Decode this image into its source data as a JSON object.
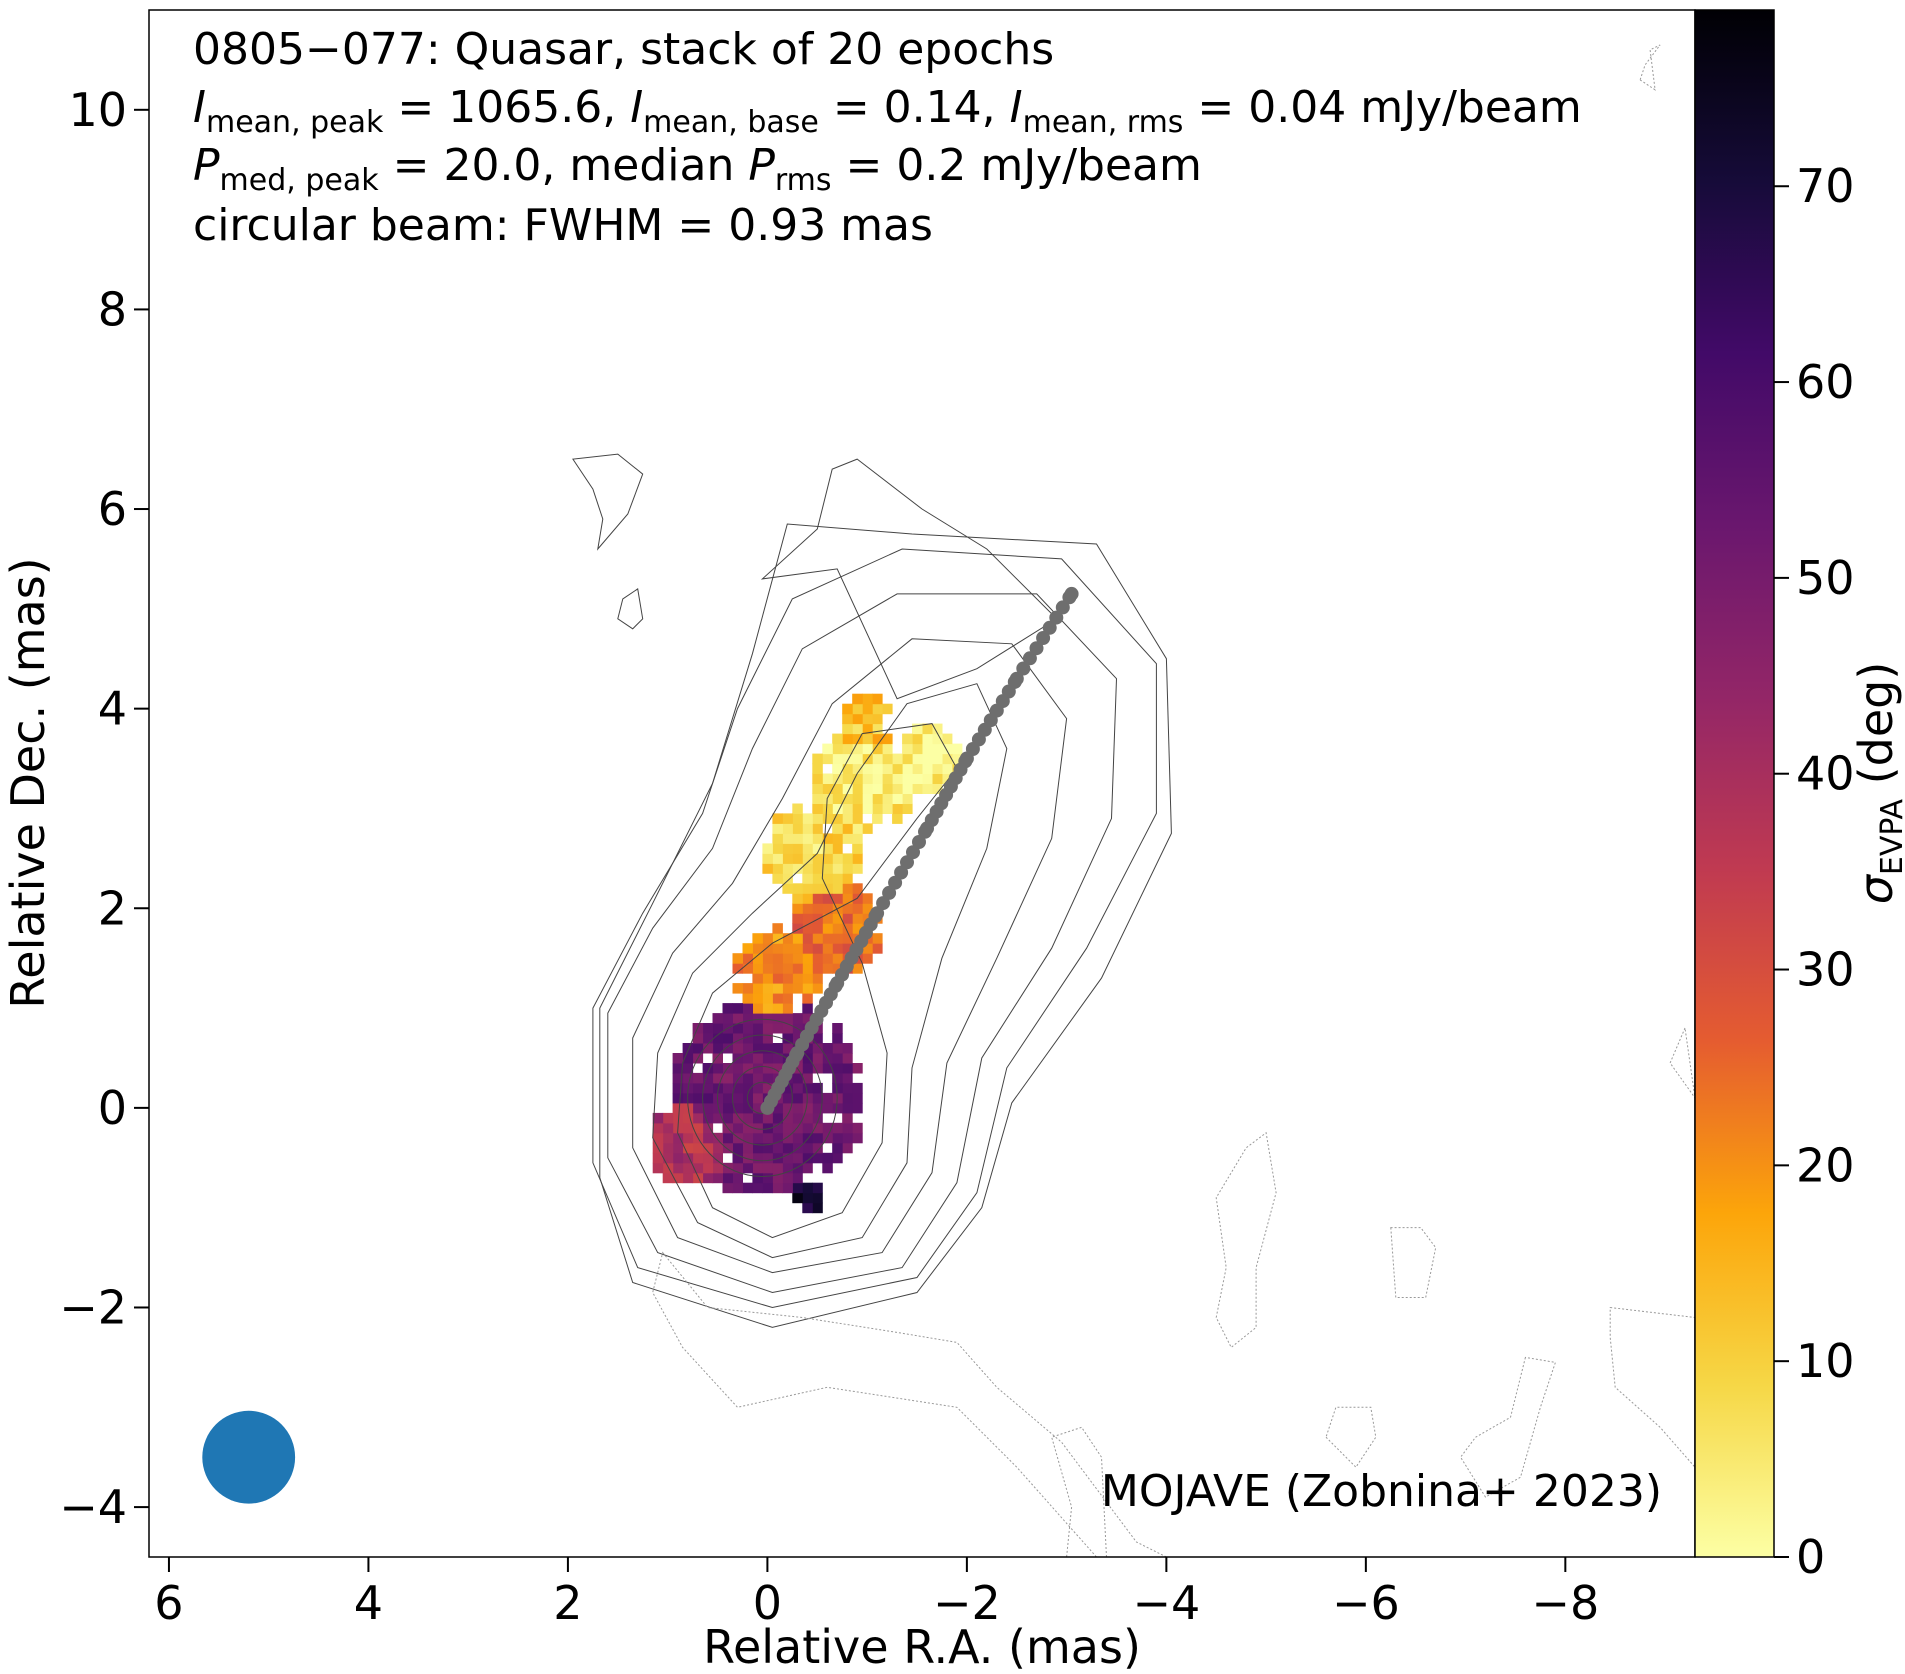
{
  "chart_data": {
    "type": "heatmap",
    "annotation": {
      "line1": "0805−077: Quasar, stack of 20 epochs",
      "line2": {
        "sym": "I",
        "sub1": "mean, peak",
        "val1": " = 1065.6, ",
        "sub2": "mean, base",
        "val2": " = 0.14, ",
        "sub3": "mean, rms",
        "val3": " = 0.04 mJy/beam"
      },
      "line3": {
        "sym": "P",
        "sub1": "med, peak",
        "val1": " = 20.0, median ",
        "sub2": "rms",
        "val2": " = 0.2 mJy/beam"
      },
      "line4": "circular beam: FWHM = 0.93 mas"
    },
    "credit": "MOJAVE (Zobnina+ 2023)",
    "xlabel": "Relative R.A. (mas)",
    "ylabel": "Relative Dec. (mas)",
    "xlim": [
      6.2,
      -9.3
    ],
    "ylim": [
      -4.5,
      11
    ],
    "x_ticks": [
      6,
      4,
      2,
      0,
      -2,
      -4,
      -6,
      -8
    ],
    "x_tick_labels": [
      "6",
      "4",
      "2",
      "0",
      "−2",
      "−4",
      "−6",
      "−8"
    ],
    "y_ticks": [
      -4,
      -2,
      0,
      2,
      4,
      6,
      8,
      10
    ],
    "y_tick_labels": [
      "−4",
      "−2",
      "0",
      "2",
      "4",
      "6",
      "8",
      "10"
    ],
    "colorbar": {
      "label_sym": "σ",
      "label_sub": "EVPA",
      "label_rest": " (deg)",
      "range": [
        0,
        79
      ],
      "ticks": [
        0,
        10,
        20,
        30,
        40,
        50,
        60,
        70
      ],
      "tick_labels": [
        "0",
        "10",
        "20",
        "30",
        "40",
        "50",
        "60",
        "70"
      ],
      "colormap": "inferno_r",
      "colors": [
        "#fcffa4",
        "#f6d746",
        "#fca50a",
        "#e55c30",
        "#c03a51",
        "#932667",
        "#6a176e",
        "#420a68",
        "#160b39",
        "#000004"
      ]
    },
    "beam": {
      "fwhm_mas": 0.93,
      "center_mas": [
        5.2,
        -3.5
      ],
      "color": "#1f77b4"
    },
    "ridge_line": {
      "color": "#6e6e6e",
      "points": [
        [
          0,
          0
        ],
        [
          -0.3,
          0.55
        ],
        [
          -0.7,
          1.25
        ],
        [
          -1.1,
          1.95
        ],
        [
          -1.6,
          2.8
        ],
        [
          -2.0,
          3.5
        ],
        [
          -2.5,
          4.3
        ],
        [
          -3.05,
          5.15
        ]
      ]
    },
    "contours_mas": [
      [
        [
          0.9,
          -0.25
        ],
        [
          0.85,
          0.45
        ],
        [
          0.55,
          1.15
        ],
        [
          -0.05,
          1.65
        ],
        [
          -0.9,
          2.1
        ],
        [
          -1.5,
          2.9
        ],
        [
          -1.9,
          3.4
        ],
        [
          -1.65,
          3.85
        ],
        [
          -0.95,
          3.75
        ],
        [
          -0.6,
          3.1
        ],
        [
          -0.55,
          2.3
        ],
        [
          -0.95,
          1.45
        ],
        [
          -1.2,
          0.55
        ],
        [
          -1.15,
          -0.35
        ],
        [
          -0.75,
          -1.05
        ],
        [
          -0.05,
          -1.3
        ],
        [
          0.55,
          -1.0
        ]
      ],
      [
        [
          1.15,
          -0.3
        ],
        [
          1.1,
          0.55
        ],
        [
          0.75,
          1.35
        ],
        [
          0.15,
          1.95
        ],
        [
          -0.5,
          2.55
        ],
        [
          -0.9,
          3.35
        ],
        [
          -1.4,
          4.05
        ],
        [
          -2.1,
          4.25
        ],
        [
          -2.4,
          3.6
        ],
        [
          -2.2,
          2.6
        ],
        [
          -1.75,
          1.5
        ],
        [
          -1.45,
          0.4
        ],
        [
          -1.4,
          -0.55
        ],
        [
          -0.95,
          -1.3
        ],
        [
          -0.05,
          -1.5
        ],
        [
          0.7,
          -1.15
        ]
      ],
      [
        [
          1.35,
          -0.4
        ],
        [
          1.35,
          0.7
        ],
        [
          0.95,
          1.55
        ],
        [
          0.35,
          2.25
        ],
        [
          -0.15,
          3.1
        ],
        [
          -0.65,
          4.05
        ],
        [
          -1.45,
          4.7
        ],
        [
          -2.45,
          4.65
        ],
        [
          -3.0,
          3.9
        ],
        [
          -2.85,
          2.7
        ],
        [
          -2.3,
          1.5
        ],
        [
          -1.8,
          0.45
        ],
        [
          -1.65,
          -0.65
        ],
        [
          -1.15,
          -1.45
        ],
        [
          -0.05,
          -1.65
        ],
        [
          0.9,
          -1.3
        ]
      ],
      [
        [
          1.6,
          -0.5
        ],
        [
          1.6,
          0.95
        ],
        [
          1.15,
          1.8
        ],
        [
          0.55,
          2.6
        ],
        [
          0.15,
          3.6
        ],
        [
          -0.35,
          4.6
        ],
        [
          -1.3,
          5.15
        ],
        [
          -2.7,
          5.15
        ],
        [
          -3.5,
          4.3
        ],
        [
          -3.45,
          2.9
        ],
        [
          -2.85,
          1.6
        ],
        [
          -2.15,
          0.5
        ],
        [
          -1.9,
          -0.75
        ],
        [
          -1.35,
          -1.6
        ],
        [
          -0.05,
          -1.85
        ],
        [
          1.1,
          -1.45
        ]
      ],
      [
        [
          1.75,
          -0.55
        ],
        [
          1.75,
          1.0
        ],
        [
          1.25,
          1.95
        ],
        [
          0.65,
          2.95
        ],
        [
          0.3,
          4.0
        ],
        [
          -0.25,
          5.1
        ],
        [
          -1.35,
          5.6
        ],
        [
          -2.95,
          5.5
        ],
        [
          -3.9,
          4.45
        ],
        [
          -3.9,
          2.95
        ],
        [
          -3.2,
          1.6
        ],
        [
          -2.4,
          0.4
        ],
        [
          -2.1,
          -0.85
        ],
        [
          -1.5,
          -1.7
        ],
        [
          -0.05,
          -2.0
        ],
        [
          1.3,
          -1.6
        ]
      ],
      [
        [
          1.68,
          -0.7
        ],
        [
          1.68,
          1.0
        ],
        [
          1.15,
          2.05
        ],
        [
          0.55,
          3.25
        ],
        [
          0.15,
          4.55
        ],
        [
          -0.2,
          5.85
        ],
        [
          -1.45,
          5.75
        ],
        [
          -3.3,
          5.65
        ],
        [
          -4.0,
          4.5
        ],
        [
          -4.05,
          2.75
        ],
        [
          -3.35,
          1.3
        ],
        [
          -2.45,
          0.05
        ],
        [
          -2.15,
          -1.0
        ],
        [
          -1.5,
          -1.85
        ],
        [
          -0.05,
          -2.2
        ],
        [
          1.35,
          -1.75
        ]
      ],
      [
        [
          -0.9,
          6.5
        ],
        [
          -1.55,
          6.0
        ],
        [
          -2.2,
          5.6
        ],
        [
          -2.9,
          4.9
        ],
        [
          -2.1,
          4.4
        ],
        [
          -1.3,
          4.1
        ],
        [
          -0.7,
          5.4
        ],
        [
          0.05,
          5.3
        ],
        [
          -0.5,
          5.8
        ],
        [
          -0.65,
          6.4
        ]
      ],
      [
        [
          1.95,
          6.5
        ],
        [
          1.75,
          6.2
        ],
        [
          1.65,
          5.9
        ],
        [
          1.7,
          5.6
        ],
        [
          1.4,
          5.95
        ],
        [
          1.25,
          6.35
        ],
        [
          1.5,
          6.55
        ]
      ],
      [
        [
          1.45,
          5.1
        ],
        [
          1.3,
          5.2
        ],
        [
          1.25,
          4.9
        ],
        [
          1.35,
          4.8
        ],
        [
          1.5,
          4.9
        ]
      ]
    ],
    "dashed_contours_mas": [
      [
        [
          1.05,
          -1.45
        ],
        [
          0.6,
          -2.0
        ],
        [
          -0.35,
          -2.1
        ],
        [
          -1.3,
          -2.25
        ],
        [
          -1.9,
          -2.35
        ],
        [
          -2.3,
          -2.8
        ],
        [
          -2.95,
          -3.35
        ],
        [
          -3.7,
          -4.35
        ],
        [
          -4.0,
          -4.5
        ],
        [
          -3.3,
          -4.5
        ],
        [
          -2.5,
          -3.6
        ],
        [
          -1.9,
          -3.0
        ],
        [
          -0.6,
          -2.8
        ],
        [
          0.3,
          -3.0
        ],
        [
          0.85,
          -2.4
        ],
        [
          1.15,
          -1.85
        ]
      ],
      [
        [
          -4.5,
          -2.1
        ],
        [
          -4.6,
          -1.6
        ],
        [
          -4.5,
          -0.9
        ],
        [
          -4.8,
          -0.4
        ],
        [
          -5.0,
          -0.25
        ],
        [
          -5.1,
          -0.85
        ],
        [
          -4.9,
          -1.6
        ],
        [
          -4.9,
          -2.2
        ],
        [
          -4.65,
          -2.4
        ]
      ],
      [
        [
          -6.25,
          -1.2
        ],
        [
          -6.3,
          -1.9
        ],
        [
          -6.6,
          -1.9
        ],
        [
          -6.7,
          -1.4
        ],
        [
          -6.55,
          -1.2
        ]
      ],
      [
        [
          -8.45,
          -2.0
        ],
        [
          -9.3,
          -2.1
        ],
        [
          -9.3,
          -3.6
        ],
        [
          -8.95,
          -3.2
        ],
        [
          -8.5,
          -2.8
        ],
        [
          -8.45,
          -2.3
        ]
      ],
      [
        [
          -5.6,
          -3.3
        ],
        [
          -5.9,
          -3.6
        ],
        [
          -6.1,
          -3.3
        ],
        [
          -6.05,
          -3.0
        ],
        [
          -5.7,
          -3.0
        ]
      ],
      [
        [
          -7.6,
          -2.5
        ],
        [
          -7.45,
          -3.1
        ],
        [
          -7.1,
          -3.3
        ],
        [
          -6.95,
          -3.5
        ],
        [
          -7.2,
          -3.9
        ],
        [
          -7.55,
          -3.7
        ],
        [
          -7.75,
          -3.0
        ],
        [
          -7.9,
          -2.55
        ]
      ],
      [
        [
          -3.4,
          -4.5
        ],
        [
          -3.35,
          -3.5
        ],
        [
          -3.15,
          -3.2
        ],
        [
          -2.85,
          -3.3
        ],
        [
          -3.05,
          -4.0
        ],
        [
          -3.0,
          -4.5
        ]
      ],
      [
        [
          -9.2,
          0.8
        ],
        [
          -9.05,
          0.45
        ],
        [
          -9.3,
          0.1
        ]
      ],
      [
        [
          -8.75,
          10.3
        ],
        [
          -8.9,
          10.2
        ],
        [
          -8.85,
          10.6
        ],
        [
          -8.95,
          10.65
        ],
        [
          -8.8,
          10.45
        ]
      ]
    ],
    "sigma_blobs_deg": [
      {
        "center": [
          0.0,
          0.1
        ],
        "radius": 1.0,
        "value": 52
      },
      {
        "center": [
          0.75,
          -0.35
        ],
        "radius": 0.45,
        "value": 38
      },
      {
        "center": [
          -0.1,
          1.35
        ],
        "radius": 0.45,
        "value": 20
      },
      {
        "center": [
          -0.7,
          1.8
        ],
        "radius": 0.45,
        "value": 25
      },
      {
        "center": [
          -0.45,
          2.55
        ],
        "radius": 0.5,
        "value": 8
      },
      {
        "center": [
          -0.95,
          3.25
        ],
        "radius": 0.55,
        "value": 5
      },
      {
        "center": [
          -1.6,
          3.5
        ],
        "radius": 0.35,
        "value": 3
      },
      {
        "center": [
          -1.0,
          3.85
        ],
        "radius": 0.3,
        "value": 12
      },
      {
        "center": [
          -0.4,
          -0.9
        ],
        "radius": 0.2,
        "value": 72
      }
    ]
  }
}
